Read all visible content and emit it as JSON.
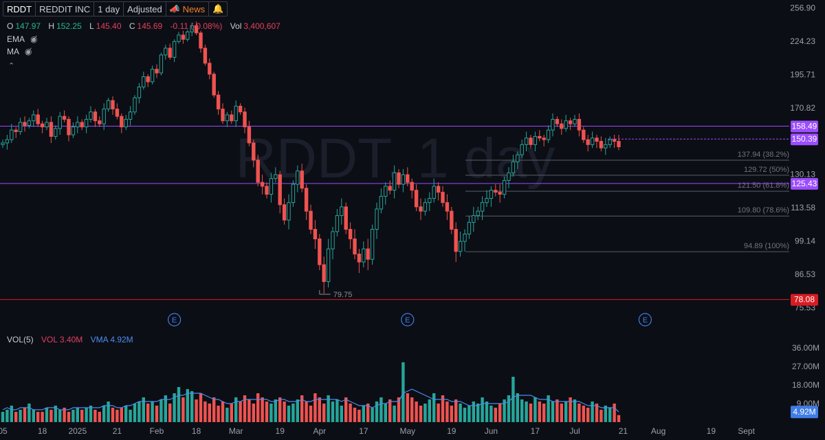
{
  "toolbar": {
    "symbol": "RDDT",
    "company": "REDDIT INC",
    "interval": "1 day",
    "adjustment": "Adjusted",
    "news_label": "News",
    "news_icon": "megaphone-icon",
    "alert_icon": "bell-icon"
  },
  "ohlc": {
    "open_label": "O",
    "open": "147.97",
    "high_label": "H",
    "high": "152.25",
    "low_label": "L",
    "low": "145.40",
    "close_label": "C",
    "close": "145.69",
    "change": "-0.11 (-0.08%)",
    "vol_label": "Vol",
    "vol": "3,400,607"
  },
  "indicators": [
    {
      "label": "EMA",
      "icon": "eye-hidden-icon"
    },
    {
      "label": "MA",
      "icon": "eye-hidden-icon"
    }
  ],
  "collapse_icon": "chevron-up-icon",
  "watermark": "RDDT, 1 day",
  "volume_legend": {
    "name": "VOL(5)",
    "vol": "VOL 3.40M",
    "vma": "VMA 4.92M"
  },
  "colors": {
    "up": "#26a69a",
    "down": "#ef5350",
    "purple": "#9b4dff",
    "red_line": "#d81c23",
    "vma": "#4c8df0",
    "background": "#0c0e15"
  },
  "chart_data": {
    "type": "candlestick",
    "price_axis": {
      "ylim": [
        74.5,
        260
      ],
      "ticks": [
        256.9,
        224.23,
        195.71,
        170.82,
        149.09,
        130.13,
        113.58,
        99.14,
        86.53,
        75.53
      ]
    },
    "volume_axis": {
      "ylim": [
        0,
        38
      ],
      "ticks": [
        "36.00M",
        "27.00M",
        "18.00M",
        "9.00M"
      ]
    },
    "x_ticks": [
      {
        "label": "05",
        "bar": 0
      },
      {
        "label": "18",
        "bar": 9
      },
      {
        "label": "2025",
        "bar": 17
      },
      {
        "label": "21",
        "bar": 26
      },
      {
        "label": "Feb",
        "bar": 35
      },
      {
        "label": "18",
        "bar": 44
      },
      {
        "label": "Mar",
        "bar": 53
      },
      {
        "label": "19",
        "bar": 63
      },
      {
        "label": "Apr",
        "bar": 72
      },
      {
        "label": "17",
        "bar": 82
      },
      {
        "label": "May",
        "bar": 92
      },
      {
        "label": "19",
        "bar": 102
      },
      {
        "label": "Jun",
        "bar": 111
      },
      {
        "label": "17",
        "bar": 121
      },
      {
        "label": "Jul",
        "bar": 130
      },
      {
        "label": "21",
        "bar": 141
      },
      {
        "label": "Aug",
        "bar": 149
      },
      {
        "label": "19",
        "bar": 161
      },
      {
        "label": "Sept",
        "bar": 169
      }
    ],
    "closes": [
      148,
      150,
      156,
      155,
      161,
      159,
      162,
      166,
      160,
      158,
      161,
      152,
      157,
      165,
      163,
      153,
      158,
      161,
      158,
      163,
      168,
      162,
      160,
      170,
      176,
      170,
      165,
      158,
      163,
      168,
      178,
      186,
      194,
      190,
      200,
      197,
      212,
      218,
      210,
      224,
      230,
      226,
      233,
      239,
      232,
      218,
      205,
      196,
      180,
      170,
      162,
      166,
      162,
      172,
      168,
      158,
      148,
      138,
      126,
      124,
      120,
      128,
      130,
      115,
      108,
      116,
      125,
      132,
      123,
      112,
      104,
      100,
      90,
      84,
      96,
      103,
      110,
      114,
      104,
      100,
      94,
      91,
      96,
      92,
      104,
      113,
      119,
      124,
      122,
      131,
      125,
      130,
      126,
      122,
      114,
      112,
      116,
      118,
      124,
      121,
      116,
      112,
      104,
      95,
      99,
      102,
      107,
      110,
      112,
      116,
      118,
      122,
      121,
      120,
      127,
      131,
      137,
      141,
      147,
      151,
      147,
      152,
      151,
      150,
      156,
      163,
      160,
      157,
      162,
      160,
      163,
      156,
      150,
      147,
      151,
      149,
      145,
      147,
      150,
      149,
      145.69
    ],
    "volumes_m": [
      5,
      6,
      8,
      5,
      6,
      7,
      9,
      6,
      5,
      5,
      7,
      6,
      8,
      6,
      7,
      5,
      6,
      7,
      6,
      7,
      8,
      6,
      5,
      8,
      10,
      7,
      6,
      7,
      8,
      6,
      9,
      10,
      12,
      9,
      10,
      8,
      11,
      13,
      9,
      14,
      17,
      12,
      16,
      15,
      11,
      14,
      10,
      9,
      12,
      8,
      10,
      7,
      9,
      12,
      10,
      13,
      11,
      9,
      14,
      12,
      10,
      9,
      11,
      12,
      10,
      8,
      9,
      11,
      13,
      10,
      8,
      14,
      12,
      9,
      13,
      10,
      11,
      8,
      12,
      9,
      7,
      6,
      8,
      9,
      7,
      10,
      12,
      9,
      11,
      8,
      12,
      29,
      14,
      12,
      10,
      8,
      9,
      11,
      14,
      9,
      13,
      10,
      8,
      11,
      9,
      7,
      8,
      10,
      9,
      12,
      10,
      8,
      7,
      9,
      11,
      13,
      22,
      14,
      11,
      10,
      9,
      12,
      10,
      9,
      13,
      10,
      11,
      9,
      10,
      12,
      11,
      9,
      8,
      7,
      10,
      9,
      6,
      8,
      7,
      9,
      3.4
    ],
    "vma_m": [
      6,
      7,
      6,
      6,
      7,
      7,
      7,
      6,
      6,
      6,
      7,
      7,
      7,
      6,
      6,
      6,
      7,
      7,
      7,
      7,
      7,
      7,
      7,
      8,
      8,
      8,
      7,
      7,
      8,
      8,
      9,
      10,
      10,
      10,
      10,
      10,
      11,
      11,
      11,
      12,
      13,
      13,
      14,
      14,
      14,
      14,
      13,
      12,
      11,
      11,
      10,
      9,
      9,
      10,
      10,
      11,
      11,
      11,
      11,
      11,
      11,
      10,
      10,
      11,
      11,
      10,
      10,
      10,
      11,
      10,
      10,
      11,
      11,
      11,
      11,
      11,
      11,
      10,
      11,
      10,
      9,
      8,
      8,
      8,
      7,
      8,
      9,
      9,
      10,
      10,
      10,
      14,
      15,
      16,
      15,
      14,
      13,
      12,
      11,
      11,
      11,
      11,
      10,
      10,
      10,
      9,
      8,
      8,
      8,
      9,
      9,
      9,
      9,
      9,
      9,
      10,
      12,
      13,
      13,
      13,
      13,
      12,
      11,
      11,
      11,
      10,
      10,
      10,
      10,
      10,
      10,
      10,
      9,
      8,
      8,
      8,
      7,
      7,
      7,
      7,
      4.92
    ],
    "levels": [
      {
        "value": 158.49,
        "label": "158.49",
        "type": "horizontal-line",
        "color": "#9b4dff"
      },
      {
        "value": 125.43,
        "label": "125.43",
        "type": "horizontal-line",
        "color": "#9b4dff"
      },
      {
        "value": 150.39,
        "label": "150.39",
        "type": "last-price",
        "color": "#9b4dff"
      },
      {
        "value": 78.08,
        "label": "78.08",
        "type": "horizontal-line",
        "color": "#d81c23"
      }
    ],
    "fib_levels": [
      {
        "value": 137.94,
        "label": "137.94 (38.2%)"
      },
      {
        "value": 129.72,
        "label": "129.72 (50%)"
      },
      {
        "value": 121.5,
        "label": "121.50 (61.8%)"
      },
      {
        "value": 109.8,
        "label": "109.80 (78.6%)"
      },
      {
        "value": 94.89,
        "label": "94.89 (100%)"
      }
    ],
    "low_annotation": {
      "value": 79.75,
      "label": "79.75",
      "bar": 72
    },
    "earnings_markers": [
      {
        "label": "E",
        "bar": 39
      },
      {
        "label": "E",
        "bar": 92
      },
      {
        "label": "E",
        "bar": 146
      }
    ],
    "volume_last_label": "4.92M"
  }
}
